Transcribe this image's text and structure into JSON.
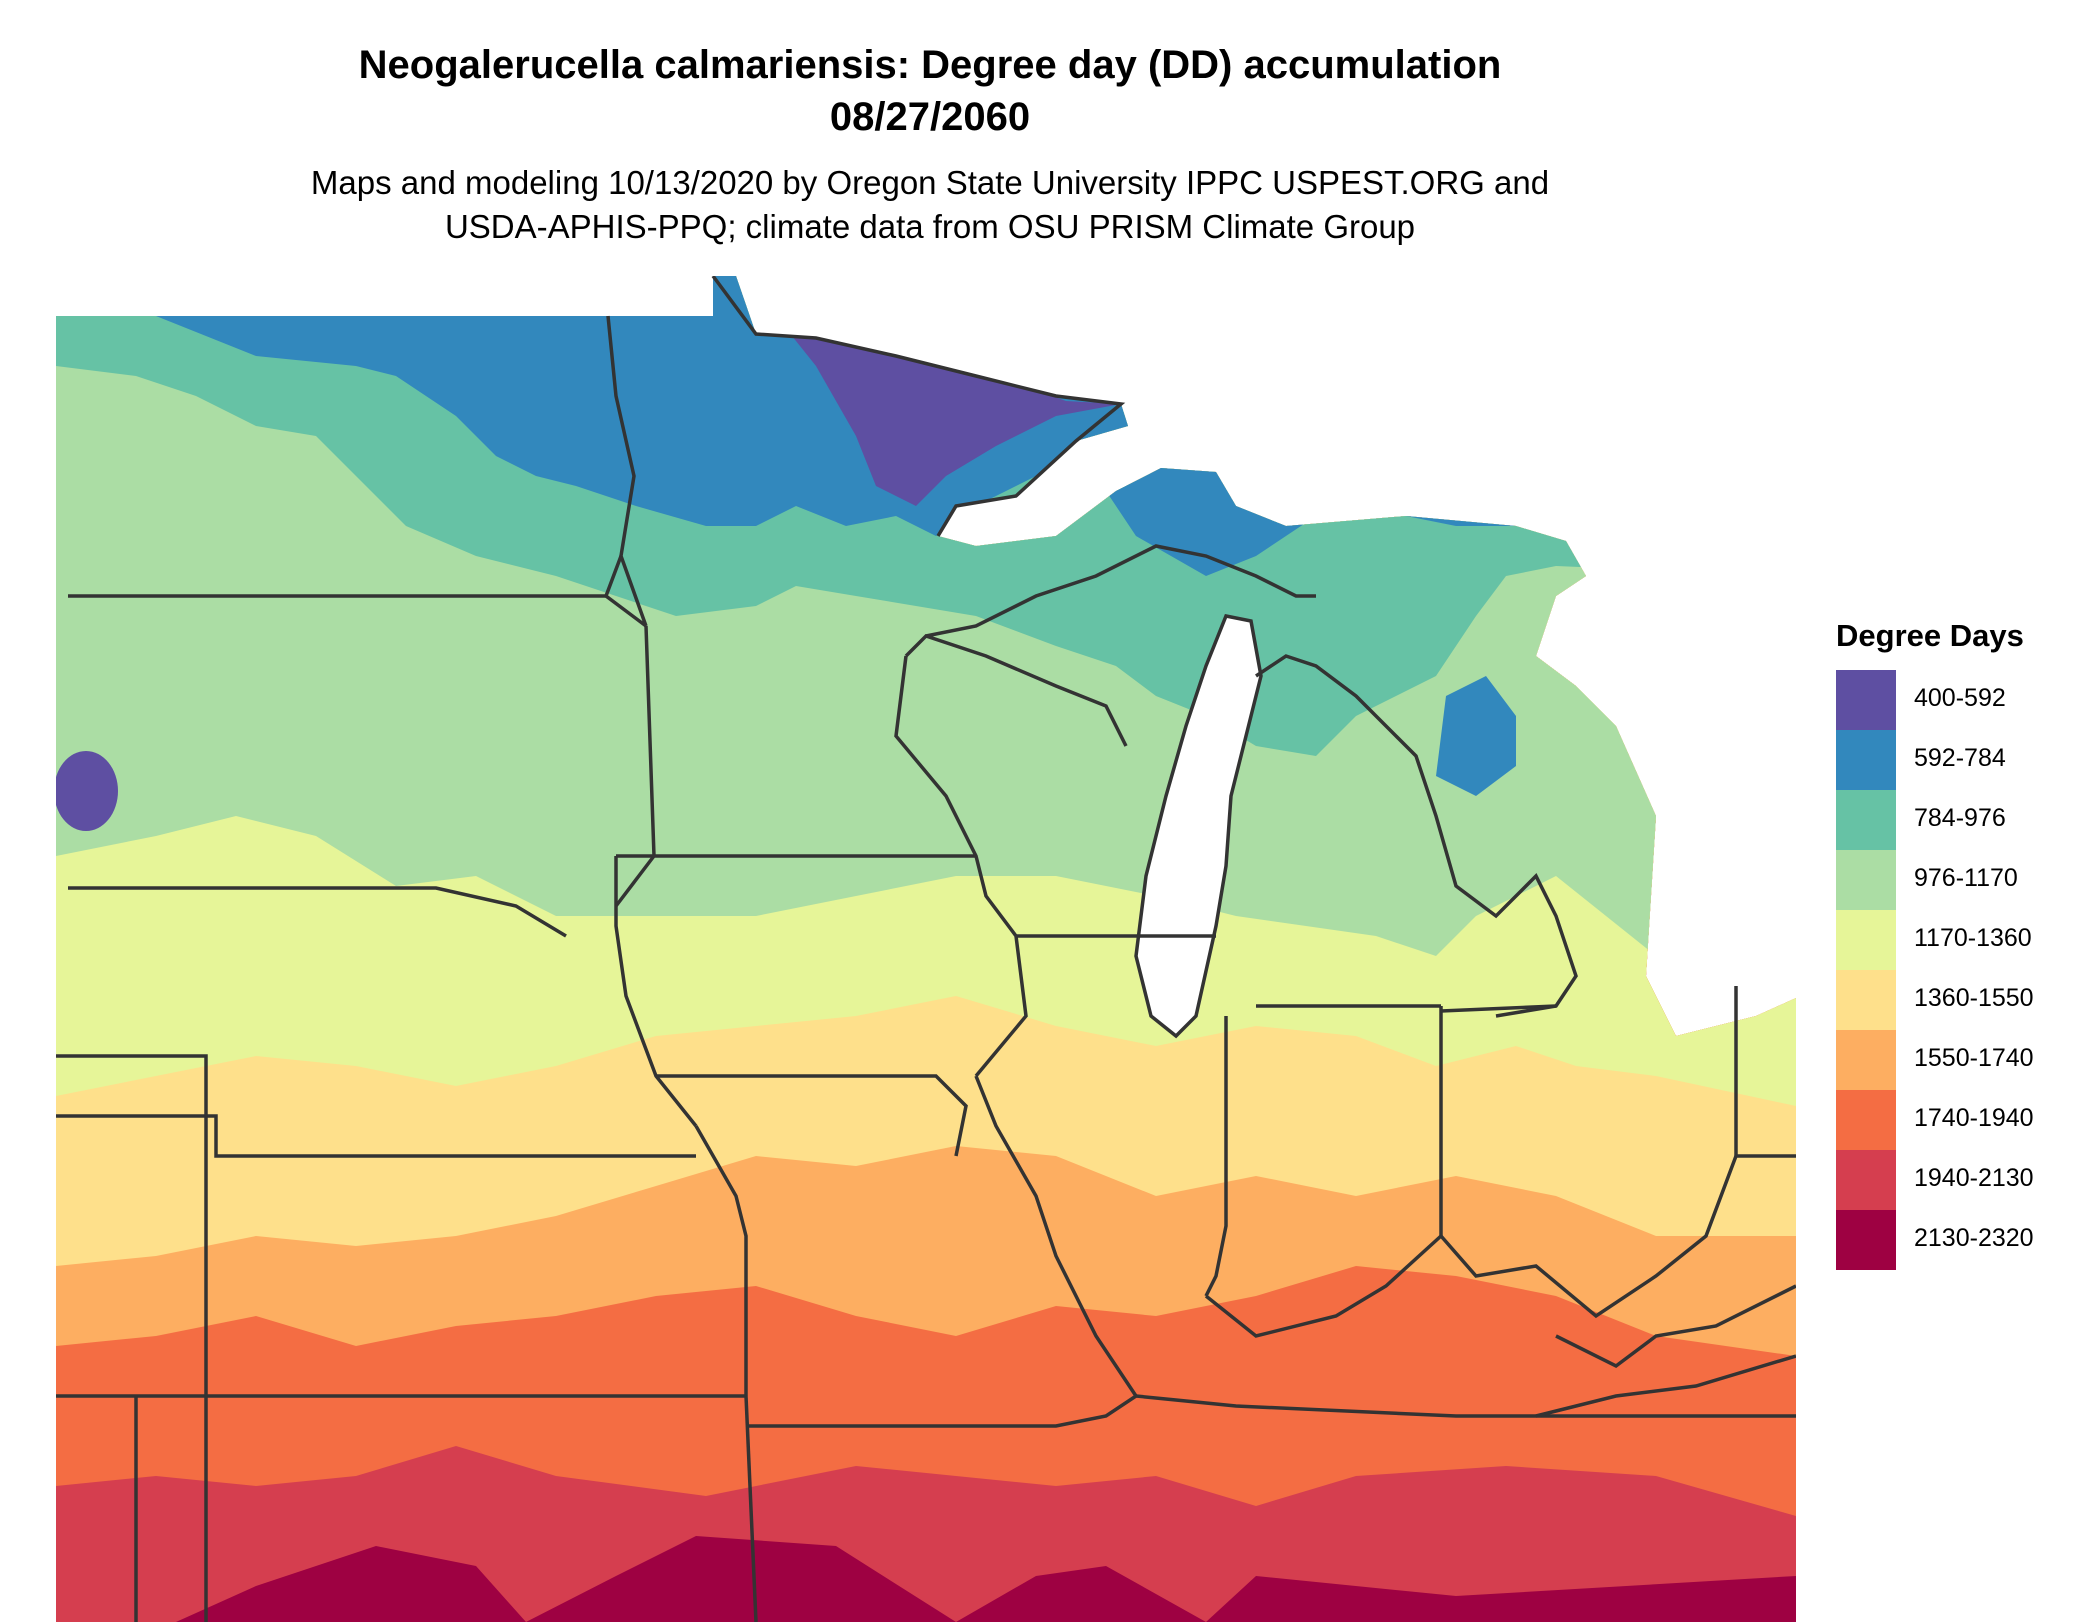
{
  "title_line1": "Neogalerucella calmariensis: Degree day (DD) accumulation",
  "title_line2": "08/27/2060",
  "subtitle_line1": "Maps and modeling 10/13/2020 by Oregon State University IPPC USPEST.ORG and",
  "subtitle_line2": "USDA-APHIS-PPQ; climate data from OSU PRISM Climate Group",
  "legend": {
    "title": "Degree Days",
    "items": [
      {
        "label": "400-592",
        "color": "#5e4fa2"
      },
      {
        "label": "592-784",
        "color": "#3288bd"
      },
      {
        "label": "784-976",
        "color": "#66c2a5"
      },
      {
        "label": "976-1170",
        "color": "#abdda4"
      },
      {
        "label": "1170-1360",
        "color": "#e6f598"
      },
      {
        "label": "1360-1550",
        "color": "#fee08b"
      },
      {
        "label": "1550-1740",
        "color": "#fdae61"
      },
      {
        "label": "1740-1940",
        "color": "#f46d43"
      },
      {
        "label": "1940-2130",
        "color": "#d53e4f"
      },
      {
        "label": "2130-2320",
        "color": "#9e0142"
      }
    ]
  },
  "water_color": "#ffffff",
  "boundary_color": "#333333"
}
